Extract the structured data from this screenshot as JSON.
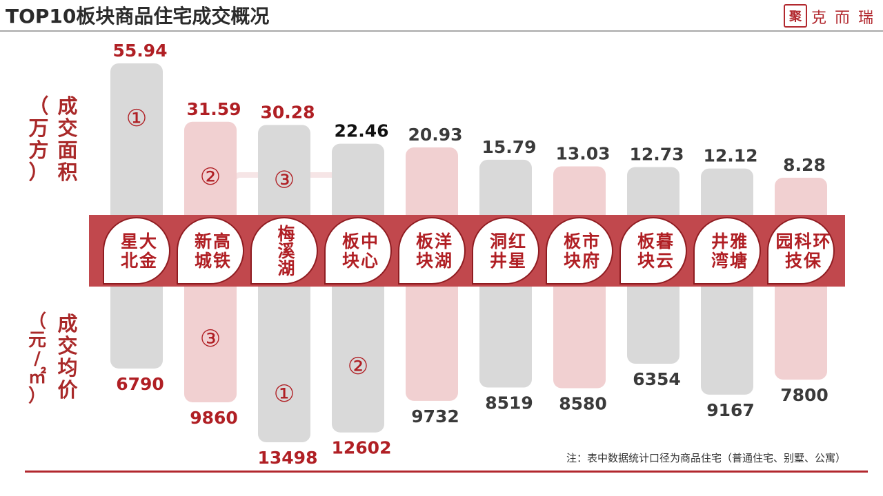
{
  "header": {
    "title": "TOP10板块商品住宅成交概况",
    "logo_mark": "聚",
    "logo_text": "克而瑞"
  },
  "labels": {
    "area_main": [
      "成",
      "交",
      "面",
      "积"
    ],
    "area_unit": [
      "（",
      "万",
      "方",
      "）"
    ],
    "price_main": [
      "成",
      "交",
      "均",
      "价"
    ],
    "price_unit": [
      "（",
      "元",
      "/",
      "㎡",
      "）"
    ]
  },
  "footer": {
    "note": "注：表中数据统计口径为商品住宅（普通住宅、别墅、公寓）"
  },
  "colors": {
    "accent": "#b2282e",
    "value_red": "#b01f24",
    "value_dark": "#3a3a3a",
    "bar_gray": "#d9d9d9",
    "bar_pink": "#f1d0d1",
    "band": "#c1484d"
  },
  "chart_data": {
    "type": "bar",
    "categories": [
      "星大北金",
      "新高城铁",
      "梅溪湖",
      "板中块心",
      "板洋块湖",
      "洞红井星",
      "板市块府",
      "板暮块云",
      "井雅湾塘",
      "园科环技保"
    ],
    "display_names": [
      [
        "星大",
        "北金"
      ],
      [
        "新高",
        "城铁"
      ],
      [
        "梅",
        "溪",
        "湖"
      ],
      [
        "板中",
        "块心"
      ],
      [
        "板洋",
        "块湖"
      ],
      [
        "洞红",
        "井星"
      ],
      [
        "板市",
        "块府"
      ],
      [
        "板暮",
        "块云"
      ],
      [
        "井雅",
        "湾塘"
      ],
      [
        "园科环",
        "技保"
      ]
    ],
    "series": [
      {
        "name": "成交面积（万方）",
        "values": [
          55.94,
          31.59,
          30.28,
          22.46,
          20.93,
          15.79,
          13.03,
          12.73,
          12.12,
          8.28
        ],
        "labels": [
          "55.94",
          "31.59",
          "30.28",
          "22.46",
          "20.93",
          "15.79",
          "13.03",
          "12.73",
          "12.12",
          "8.28"
        ],
        "ranks": [
          "①",
          "②",
          "③",
          "",
          "",
          "",
          "",
          "",
          "",
          ""
        ]
      },
      {
        "name": "成交均价（元/㎡）",
        "values": [
          6790,
          9860,
          13498,
          12602,
          9732,
          8519,
          8580,
          6354,
          9167,
          7800
        ],
        "labels": [
          "6790",
          "9860",
          "13498",
          "12602",
          "9732",
          "8519",
          "8580",
          "6354",
          "9167",
          "7800"
        ],
        "ranks": [
          "",
          "③",
          "①",
          "②",
          "",
          "",
          "",
          "",
          "",
          ""
        ]
      }
    ],
    "highlighted_area_label": [
      true,
      true,
      true,
      false,
      false,
      false,
      false,
      false,
      false,
      false
    ],
    "bar_colors": [
      "gray",
      "pink",
      "gray",
      "gray",
      "pink",
      "gray",
      "pink",
      "gray",
      "gray",
      "pink"
    ],
    "xlabel": "",
    "ylabel_top": "成交面积（万方）",
    "ylabel_bottom": "成交均价（元/㎡）"
  }
}
